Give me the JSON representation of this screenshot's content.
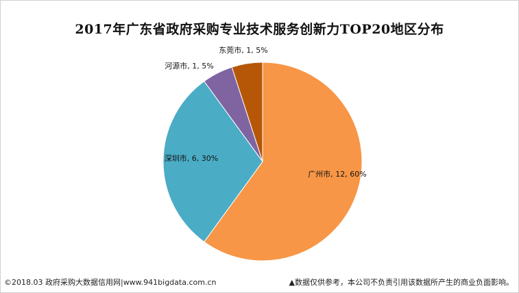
{
  "chart_data": {
    "type": "pie",
    "title": "2017年广东省政府采购专业技术服务创新力TOP20地区分布",
    "slices": [
      {
        "label": "广州市",
        "value": 12,
        "percent": "60%",
        "color": "#f79646"
      },
      {
        "label": "深圳市",
        "value": 6,
        "percent": "30%",
        "color": "#4bacc6"
      },
      {
        "label": "河源市",
        "value": 1,
        "percent": "5%",
        "color": "#8064a2"
      },
      {
        "label": "东莞市",
        "value": 1,
        "percent": "5%",
        "color": "#b65708"
      }
    ],
    "start_angle_deg": 0,
    "direction": "clockwise",
    "legend": "none"
  },
  "footer": {
    "left": "©2018.03 政府采购大数据信用网|www.941bigdata.com.cn",
    "right": "▲数据仅供参考，本公司不负责引用该数据所产生的商业负面影响。"
  }
}
